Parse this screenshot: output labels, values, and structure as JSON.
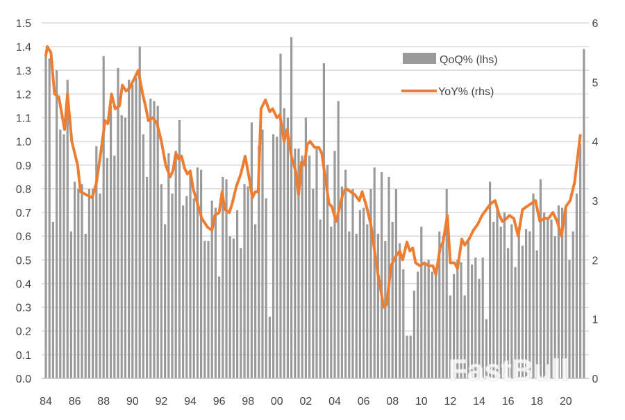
{
  "chart_data": {
    "type": "bar+line",
    "title": "",
    "xlabel": "",
    "ylabel_left": "",
    "ylabel_right": "",
    "ylim_left": [
      0,
      1.5
    ],
    "ylim_right": [
      0,
      6
    ],
    "grid": true,
    "legend_position": "top-right",
    "x_tick_labels": [
      "84",
      "86",
      "88",
      "90",
      "92",
      "94",
      "96",
      "98",
      "00",
      "02",
      "04",
      "06",
      "08",
      "10",
      "12",
      "14",
      "16",
      "18",
      "20"
    ],
    "x_tick_years": [
      1984,
      1986,
      1988,
      1990,
      1992,
      1994,
      1996,
      1998,
      2000,
      2002,
      2004,
      2006,
      2008,
      2010,
      2012,
      2014,
      2016,
      2018,
      2020
    ],
    "y_left_ticks": [
      "0.0",
      "0.1",
      "0.2",
      "0.3",
      "0.4",
      "0.5",
      "0.6",
      "0.7",
      "0.8",
      "0.9",
      "1.0",
      "1.1",
      "1.2",
      "1.3",
      "1.4",
      "1.5"
    ],
    "y_right_ticks": [
      "0",
      "1",
      "2",
      "3",
      "4",
      "5",
      "6"
    ],
    "series": [
      {
        "name": "QoQ% (lhs)",
        "type": "bar",
        "axis": "left",
        "color": "#9a9a9a",
        "quarterly": [
          {
            "year": 1984,
            "values": [
              1.36,
              1.35,
              0.66,
              1.3
            ]
          },
          {
            "year": 1985,
            "values": [
              1.05,
              1.03,
              1.26,
              0.62
            ]
          },
          {
            "year": 1986,
            "values": [
              0.83,
              0.8,
              0.82,
              0.61
            ]
          },
          {
            "year": 1987,
            "values": [
              0.8,
              0.8,
              0.98,
              0.78
            ]
          },
          {
            "year": 1988,
            "values": [
              1.36,
              0.93,
              1.15,
              0.94
            ]
          },
          {
            "year": 1989,
            "values": [
              1.31,
              1.11,
              1.1,
              1.26
            ]
          },
          {
            "year": 1990,
            "values": [
              1.24,
              1.27,
              1.4,
              1.03
            ]
          },
          {
            "year": 1991,
            "values": [
              0.85,
              1.18,
              1.17,
              1.15
            ]
          },
          {
            "year": 1992,
            "values": [
              0.82,
              0.65,
              0.95,
              0.78
            ]
          },
          {
            "year": 1993,
            "values": [
              0.96,
              1.09,
              0.73,
              0.77
            ]
          },
          {
            "year": 1994,
            "values": [
              0.87,
              0.76,
              0.89,
              0.88
            ]
          },
          {
            "year": 1995,
            "values": [
              0.58,
              0.58,
              0.75,
              0.72
            ]
          },
          {
            "year": 1996,
            "values": [
              0.43,
              0.85,
              0.84,
              0.6
            ]
          },
          {
            "year": 1997,
            "values": [
              0.59,
              0.71,
              0.55,
              0.82
            ]
          },
          {
            "year": 1998,
            "values": [
              0.81,
              1.08,
              0.65,
              0.98
            ]
          },
          {
            "year": 1999,
            "values": [
              1.05,
              0.76,
              0.26,
              1.03
            ]
          },
          {
            "year": 2000,
            "values": [
              1.02,
              1.37,
              1.14,
              1.1
            ]
          },
          {
            "year": 2001,
            "values": [
              1.44,
              0.97,
              0.97,
              0.94
            ]
          },
          {
            "year": 2002,
            "values": [
              1.1,
              0.94,
              0.8,
              0.97
            ]
          },
          {
            "year": 2003,
            "values": [
              0.67,
              1.33,
              0.9,
              0.64
            ]
          },
          {
            "year": 2004,
            "values": [
              0.96,
              1.17,
              0.81,
              0.88
            ]
          },
          {
            "year": 2005,
            "values": [
              0.62,
              0.8,
              0.61,
              0.71
            ]
          },
          {
            "year": 2006,
            "values": [
              0.72,
              0.65,
              0.8,
              0.89
            ]
          },
          {
            "year": 2007,
            "values": [
              0.61,
              0.87,
              0.58,
              0.85
            ]
          },
          {
            "year": 2008,
            "values": [
              0.66,
              0.8,
              0.57,
              0.46
            ]
          },
          {
            "year": 2009,
            "values": [
              0.18,
              0.18,
              0.37,
              0.45
            ]
          },
          {
            "year": 2010,
            "values": [
              0.64,
              0.49,
              0.5,
              0.45
            ]
          },
          {
            "year": 2011,
            "values": [
              0.45,
              0.62,
              0.6,
              0.8
            ]
          },
          {
            "year": 2012,
            "values": [
              0.35,
              0.44,
              0.5,
              0.49
            ]
          },
          {
            "year": 2013,
            "values": [
              0.35,
              0.59,
              0.48,
              0.51
            ]
          },
          {
            "year": 2014,
            "values": [
              0.42,
              0.51,
              0.25,
              0.83
            ]
          },
          {
            "year": 2015,
            "values": [
              0.66,
              0.72,
              0.64,
              0.7
            ]
          },
          {
            "year": 2016,
            "values": [
              0.55,
              0.65,
              0.47,
              0.64
            ]
          },
          {
            "year": 2017,
            "values": [
              0.56,
              0.63,
              0.62,
              0.78
            ]
          },
          {
            "year": 2018,
            "values": [
              0.54,
              0.84,
              0.7,
              0.67
            ]
          },
          {
            "year": 2019,
            "values": [
              0.67,
              0.6,
              0.73,
              0.72
            ]
          },
          {
            "year": 2020,
            "values": [
              0.72,
              0.5,
              0.62,
              0.78
            ]
          },
          {
            "year": 2021,
            "values": [
              0.99,
              1.39
            ]
          }
        ]
      },
      {
        "name": "YoY% (rhs)",
        "type": "line",
        "axis": "right",
        "color": "#ED7D31",
        "points": [
          [
            1984.0,
            5.45
          ],
          [
            1984.1,
            5.6
          ],
          [
            1984.35,
            5.5
          ],
          [
            1984.6,
            4.8
          ],
          [
            1984.9,
            4.75
          ],
          [
            1985.3,
            4.2
          ],
          [
            1985.5,
            4.8
          ],
          [
            1985.8,
            4.0
          ],
          [
            1986.2,
            3.6
          ],
          [
            1986.4,
            3.15
          ],
          [
            1986.8,
            3.1
          ],
          [
            1987.2,
            3.05
          ],
          [
            1987.5,
            3.3
          ],
          [
            1987.8,
            3.8
          ],
          [
            1988.1,
            4.35
          ],
          [
            1988.3,
            4.3
          ],
          [
            1988.55,
            4.8
          ],
          [
            1988.8,
            4.55
          ],
          [
            1989.1,
            4.6
          ],
          [
            1989.3,
            4.95
          ],
          [
            1989.55,
            4.85
          ],
          [
            1989.8,
            4.9
          ],
          [
            1990.1,
            5.05
          ],
          [
            1990.4,
            5.2
          ],
          [
            1990.7,
            4.8
          ],
          [
            1990.9,
            4.6
          ],
          [
            1991.1,
            4.35
          ],
          [
            1991.4,
            4.4
          ],
          [
            1991.7,
            4.3
          ],
          [
            1992.0,
            4.0
          ],
          [
            1992.3,
            3.6
          ],
          [
            1992.6,
            3.4
          ],
          [
            1992.8,
            3.5
          ],
          [
            1993.0,
            3.8
          ],
          [
            1993.2,
            3.7
          ],
          [
            1993.4,
            3.75
          ],
          [
            1993.6,
            3.55
          ],
          [
            1993.8,
            3.45
          ],
          [
            1994.0,
            3.5
          ],
          [
            1994.2,
            3.2
          ],
          [
            1994.5,
            2.95
          ],
          [
            1994.8,
            2.7
          ],
          [
            1995.2,
            2.55
          ],
          [
            1995.5,
            2.5
          ],
          [
            1995.7,
            2.75
          ],
          [
            1996.0,
            2.8
          ],
          [
            1996.2,
            3.15
          ],
          [
            1996.4,
            2.85
          ],
          [
            1996.7,
            2.8
          ],
          [
            1996.9,
            2.95
          ],
          [
            1997.2,
            3.25
          ],
          [
            1997.5,
            3.45
          ],
          [
            1997.8,
            3.75
          ],
          [
            1998.1,
            3.35
          ],
          [
            1998.3,
            3.05
          ],
          [
            1998.5,
            3.15
          ],
          [
            1998.7,
            3.15
          ],
          [
            1998.9,
            4.55
          ],
          [
            1999.2,
            4.7
          ],
          [
            1999.5,
            4.5
          ],
          [
            1999.7,
            4.55
          ],
          [
            2000.0,
            4.4
          ],
          [
            2000.2,
            4.45
          ],
          [
            2000.5,
            4.0
          ],
          [
            2000.7,
            4.2
          ],
          [
            2001.0,
            3.75
          ],
          [
            2001.3,
            3.5
          ],
          [
            2001.5,
            3.1
          ],
          [
            2001.7,
            3.65
          ],
          [
            2001.9,
            3.6
          ],
          [
            2002.1,
            3.95
          ],
          [
            2002.3,
            4.0
          ],
          [
            2002.6,
            3.9
          ],
          [
            2002.9,
            3.9
          ],
          [
            2003.1,
            3.8
          ],
          [
            2003.4,
            3.3
          ],
          [
            2003.6,
            2.95
          ],
          [
            2003.8,
            2.9
          ],
          [
            2004.1,
            2.65
          ],
          [
            2004.4,
            2.95
          ],
          [
            2004.6,
            3.15
          ],
          [
            2004.8,
            3.2
          ],
          [
            2005.1,
            3.15
          ],
          [
            2005.4,
            3.1
          ],
          [
            2005.7,
            3.0
          ],
          [
            2005.9,
            3.15
          ],
          [
            2006.2,
            2.9
          ],
          [
            2006.5,
            2.6
          ],
          [
            2006.7,
            2.25
          ],
          [
            2007.0,
            1.75
          ],
          [
            2007.4,
            1.2
          ],
          [
            2007.6,
            1.25
          ],
          [
            2007.9,
            1.9
          ],
          [
            2008.2,
            2.05
          ],
          [
            2008.5,
            2.15
          ],
          [
            2008.7,
            2.0
          ],
          [
            2009.0,
            2.3
          ],
          [
            2009.2,
            2.15
          ],
          [
            2009.4,
            2.2
          ],
          [
            2009.6,
            1.95
          ],
          [
            2009.9,
            1.9
          ],
          [
            2010.2,
            1.95
          ],
          [
            2010.5,
            1.9
          ],
          [
            2010.8,
            1.9
          ],
          [
            2011.0,
            1.75
          ],
          [
            2011.3,
            2.2
          ],
          [
            2011.5,
            2.3
          ],
          [
            2011.8,
            2.75
          ],
          [
            2012.0,
            1.95
          ],
          [
            2012.3,
            1.95
          ],
          [
            2012.5,
            1.85
          ],
          [
            2012.8,
            2.35
          ],
          [
            2013.0,
            2.25
          ],
          [
            2013.3,
            2.35
          ],
          [
            2013.6,
            2.5
          ],
          [
            2013.9,
            2.6
          ],
          [
            2014.2,
            2.75
          ],
          [
            2014.5,
            2.85
          ],
          [
            2014.8,
            2.95
          ],
          [
            2015.1,
            3.0
          ],
          [
            2015.4,
            2.75
          ],
          [
            2015.6,
            2.65
          ],
          [
            2015.9,
            2.7
          ],
          [
            2016.1,
            2.75
          ],
          [
            2016.4,
            2.7
          ],
          [
            2016.7,
            2.4
          ],
          [
            2017.0,
            2.85
          ],
          [
            2017.3,
            2.9
          ],
          [
            2017.6,
            2.95
          ],
          [
            2017.9,
            3.0
          ],
          [
            2018.2,
            2.65
          ],
          [
            2018.5,
            2.7
          ],
          [
            2018.8,
            2.7
          ],
          [
            2019.1,
            2.8
          ],
          [
            2019.4,
            2.65
          ],
          [
            2019.7,
            2.4
          ],
          [
            2020.0,
            2.9
          ],
          [
            2020.3,
            3.0
          ],
          [
            2020.6,
            3.3
          ],
          [
            2021.0,
            4.1
          ]
        ]
      }
    ],
    "watermark": "FastBull"
  }
}
